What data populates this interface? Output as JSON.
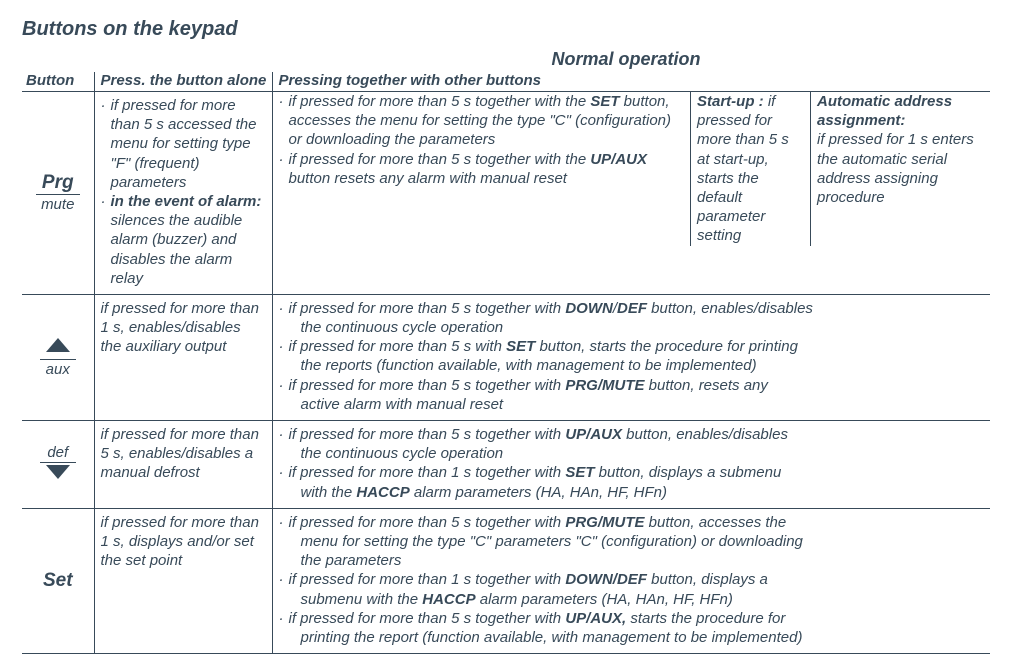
{
  "colors": {
    "text": "#384a59",
    "rule": "#384a59",
    "background": "#ffffff"
  },
  "title": "Buttons on the keypad",
  "supertitle": "Normal operation",
  "headers": {
    "button": "Button",
    "alone": "Press. the button alone",
    "together": "Pressing together with other buttons"
  },
  "rows": {
    "prg": {
      "label_top": "Prg",
      "label_bottom": "mute",
      "alone": [
        "if pressed for more than 5 s accessed the menu for setting type \"F\" (frequent) parameters",
        "<span class='nb'>in the event of alarm:</span> silences the audible alarm (buzzer) and disables the alarm relay"
      ],
      "together_main": [
        "if pressed for more than 5 s together with the <b>SET</b> button, accesses the menu for setting the type \"C\" (configuration) or downloading the parameters",
        "if pressed for more than 5 s together with the <b>UP/AUX</b> button resets any alarm with manual reset"
      ],
      "together_startup_title": "Start-up :",
      "together_startup_body": "if pressed for more than 5 s at start-up, starts the default parameter setting",
      "together_addr_title": "Automatic address assignment:",
      "together_addr_body": "if pressed for 1 s enters the automatic serial address assigning procedure"
    },
    "aux": {
      "label_top_icon": "triangle-up",
      "label_bottom": "aux",
      "alone": [
        "if pressed for more than 1 s, enables/disables the auxiliary output"
      ],
      "together": [
        "if pressed for more than 5 s together with <b>DOWN</b>/<b>DEF</b> button, enables/disables<br><span class='cont'>the continuous cycle operation</span>",
        "if pressed for more than 5 s with <b>SET</b> button, starts the procedure for printing<br><span class='cont'>the reports (function available, with management to be implemented)</span>",
        "if pressed for more than 5 s together with <b>PRG/MUTE</b> button, resets any<br><span class='cont'>active alarm with manual reset</span>"
      ]
    },
    "def": {
      "label_top": "def",
      "label_bottom_icon": "triangle-down",
      "alone": [
        "if pressed for more than 5 s, enables/disables a manual defrost"
      ],
      "together": [
        "if pressed for more than 5 s together with <b>UP/AUX</b> button, enables/disables<br><span class='cont'>the continuous cycle operation</span>",
        "if pressed for more than 1 s together with <b>SET</b> button, displays a submenu<br><span class='cont'>with the <b>HACCP</b> alarm parameters (HA, HAn, HF, HFn)</span>"
      ]
    },
    "set": {
      "label_top": "Set",
      "alone": [
        "if pressed for more than 1 s, displays and/or set the set point"
      ],
      "together": [
        "if pressed for more than 5 s together with <b>PRG/MUTE</b> button, accesses the<br><span class='cont'>menu for setting the type \"C\" parameters \"C\" (configuration) or downloading<br>the parameters</span>",
        "if pressed for more than 1 s together with <b>DOWN/DEF</b> button, displays a<br><span class='cont'>submenu with the <b>HACCP</b> alarm parameters (HA, HAn, HF, HFn)</span>",
        "if pressed for more than 5 s together with <b>UP/AUX,</b> starts the procedure for<br><span class='cont'>printing the report (function available, with management to be implemented)</span>"
      ]
    }
  }
}
